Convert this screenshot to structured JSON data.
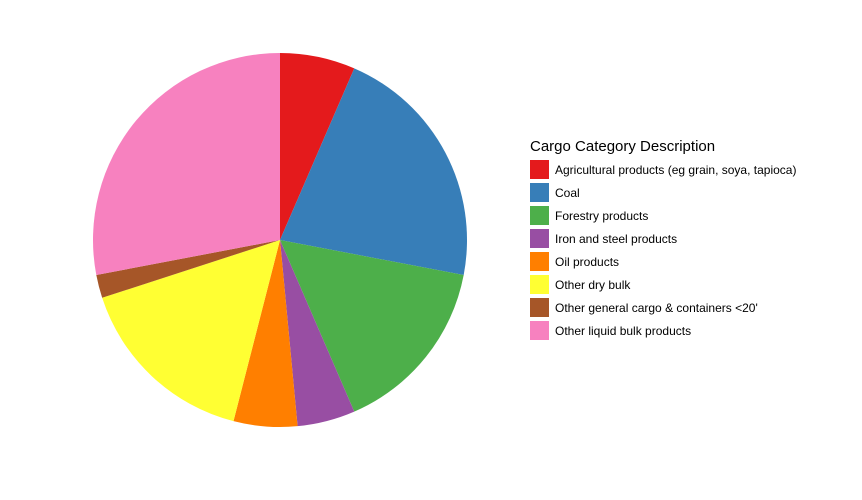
{
  "chart_data": {
    "type": "pie",
    "legend_title": "Cargo Category Description",
    "legend_position": "right",
    "slices": [
      {
        "label": "Agricultural products (eg grain, soya, tapioca)",
        "value": 6.5,
        "color": "#e41a1c"
      },
      {
        "label": "Coal",
        "value": 21.5,
        "color": "#377eb8"
      },
      {
        "label": "Forestry products",
        "value": 15.5,
        "color": "#4daf4a"
      },
      {
        "label": "Iron and steel products",
        "value": 5.0,
        "color": "#984ea3"
      },
      {
        "label": "Oil products",
        "value": 5.5,
        "color": "#ff7f00"
      },
      {
        "label": "Other dry bulk",
        "value": 16.0,
        "color": "#ffff33"
      },
      {
        "label": "Other general cargo & containers <20'",
        "value": 2.0,
        "color": "#a65628"
      },
      {
        "label": "Other liquid bulk products",
        "value": 28.0,
        "color": "#f781bf"
      }
    ]
  }
}
